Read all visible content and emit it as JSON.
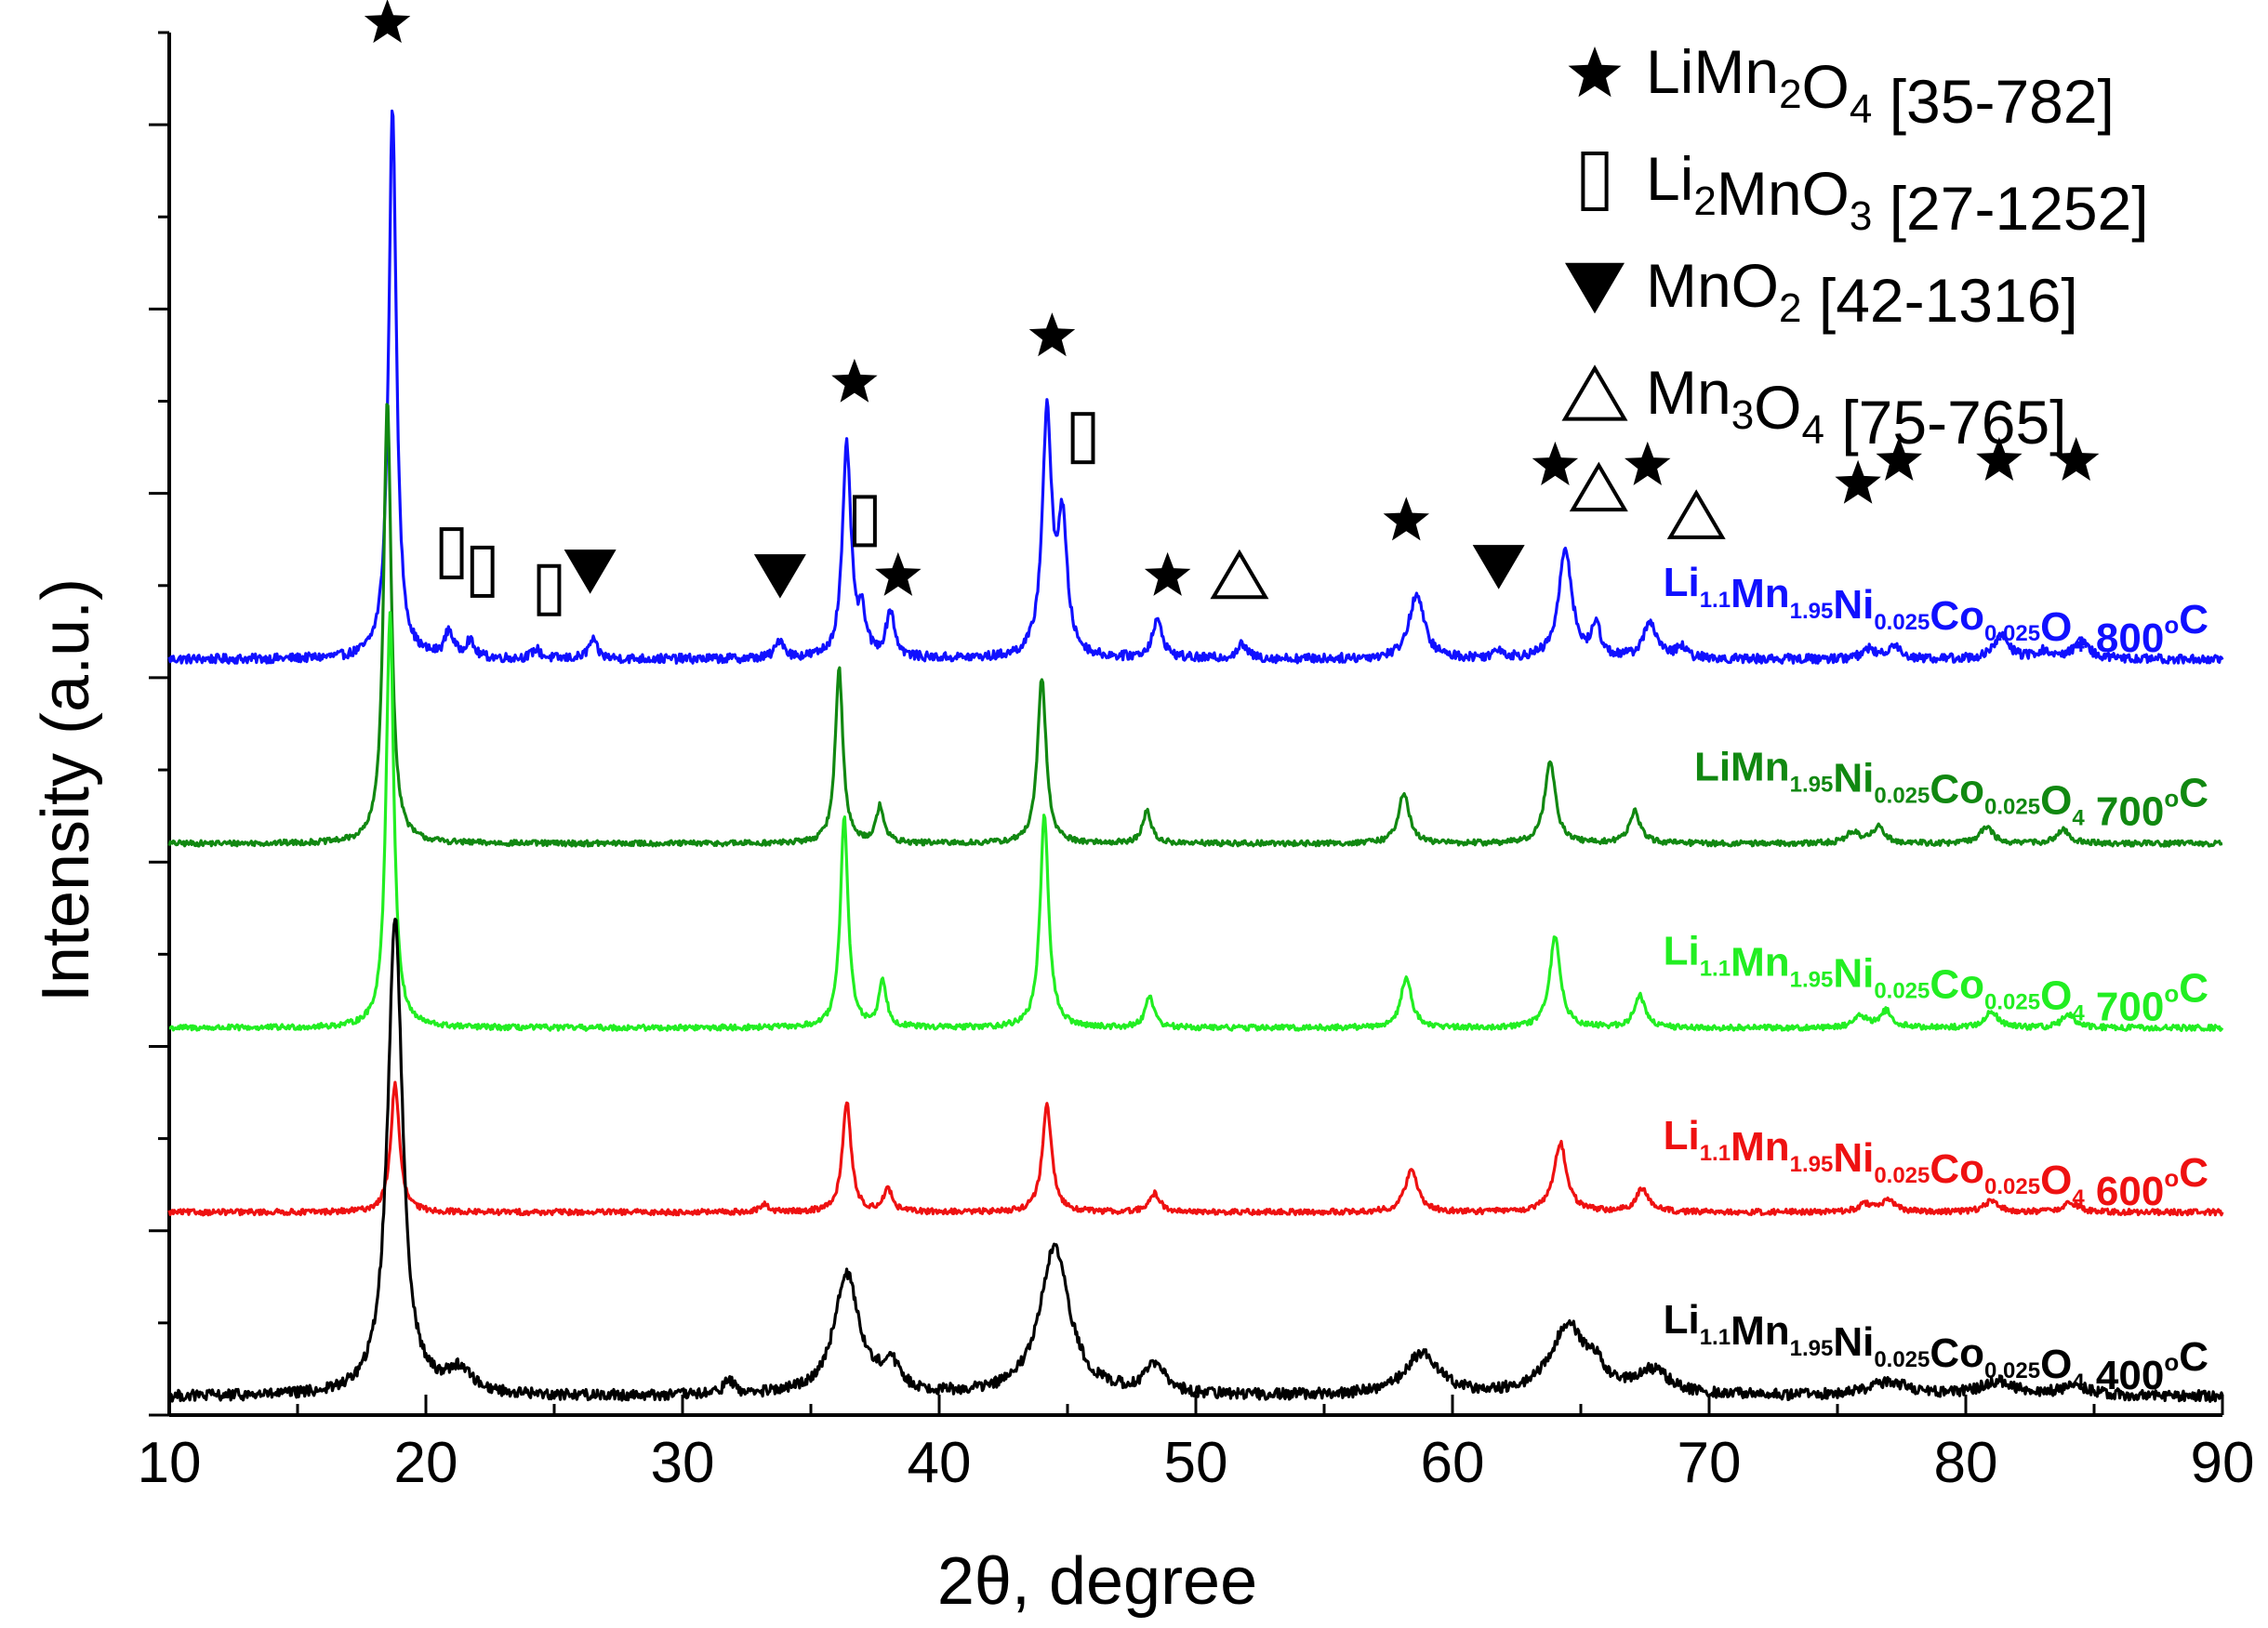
{
  "chart_data": {
    "type": "line",
    "xlabel": "2θ, degree",
    "ylabel": "Intensity (a.u.)",
    "xlim": [
      10,
      90
    ],
    "ylim": [
      0,
      15
    ],
    "x_ticks": [
      "10",
      "20",
      "30",
      "40",
      "50",
      "60",
      "70",
      "80",
      "90"
    ],
    "grid": false,
    "legend": {
      "placement": "top-right",
      "entries": [
        {
          "symbol": "filled-star",
          "glyph": "★",
          "name": "LiMn",
          "sub1": "2",
          "mid": "O",
          "sub2": "4",
          "ref": " [35-782]"
        },
        {
          "symbol": "open-box",
          "glyph": "▯",
          "name": "Li",
          "sub1": "2",
          "mid": "MnO",
          "sub2": "3",
          "ref": " [27-1252]"
        },
        {
          "symbol": "filled-down-triangle",
          "glyph": "▼",
          "name": "MnO",
          "sub1": "2",
          "mid": "",
          "sub2": "",
          "ref": " [42-1316]"
        },
        {
          "symbol": "open-triangle",
          "glyph": "△",
          "name": "Mn",
          "sub1": "3",
          "mid": "O",
          "sub2": "4",
          "ref": " [75-765]"
        }
      ]
    },
    "series": [
      {
        "name": "Li1.1Mn1.95Ni0.025Co0.025O4 800°C",
        "color": "#1010ff",
        "baseline": 8.2,
        "noise": 0.05,
        "label_parts": [
          [
            "Li",
            ""
          ],
          [
            "1.1",
            "sub"
          ],
          [
            "Mn",
            ""
          ],
          [
            "1.95",
            "sub"
          ],
          [
            "Ni",
            ""
          ],
          [
            "0.025",
            "sub"
          ],
          [
            "Co",
            ""
          ],
          [
            "0.025",
            "sub"
          ],
          [
            "O",
            ""
          ],
          [
            "4",
            "sub"
          ],
          [
            " 800",
            ""
          ],
          [
            "o",
            "sup"
          ],
          [
            "C",
            ""
          ]
        ],
        "peaks": [
          [
            18.7,
            6.0,
            0.18
          ],
          [
            20.9,
            0.28,
            0.2
          ],
          [
            21.7,
            0.18,
            0.2
          ],
          [
            24.3,
            0.1,
            0.2
          ],
          [
            26.5,
            0.2,
            0.2
          ],
          [
            33.8,
            0.2,
            0.2
          ],
          [
            36.4,
            2.3,
            0.2
          ],
          [
            37.0,
            0.4,
            0.18
          ],
          [
            38.1,
            0.5,
            0.2
          ],
          [
            44.2,
            2.6,
            0.22
          ],
          [
            44.8,
            1.4,
            0.22
          ],
          [
            48.5,
            0.4,
            0.25
          ],
          [
            51.8,
            0.15,
            0.25
          ],
          [
            58.6,
            0.7,
            0.35
          ],
          [
            61.8,
            0.1,
            0.2
          ],
          [
            64.4,
            1.2,
            0.3
          ],
          [
            65.6,
            0.35,
            0.2
          ],
          [
            67.7,
            0.4,
            0.3
          ],
          [
            68.9,
            0.12,
            0.25
          ],
          [
            76.2,
            0.1,
            0.3
          ],
          [
            77.2,
            0.15,
            0.3
          ],
          [
            81.4,
            0.25,
            0.35
          ],
          [
            83.0,
            0.08,
            0.3
          ],
          [
            84.5,
            0.2,
            0.35
          ]
        ]
      },
      {
        "name": "LiMn1.95Ni0.025Co0.025O4 700°C",
        "color": "#118811",
        "baseline": 6.2,
        "noise": 0.03,
        "label_parts": [
          [
            "LiMn",
            ""
          ],
          [
            "1.95",
            "sub"
          ],
          [
            "Ni",
            ""
          ],
          [
            "0.025",
            "sub"
          ],
          [
            "Co",
            ""
          ],
          [
            "0.025",
            "sub"
          ],
          [
            "O",
            ""
          ],
          [
            "4",
            "sub"
          ],
          [
            " 700",
            ""
          ],
          [
            "o",
            "sup"
          ],
          [
            "C",
            ""
          ]
        ],
        "peaks": [
          [
            18.5,
            4.8,
            0.18
          ],
          [
            36.1,
            1.9,
            0.18
          ],
          [
            37.7,
            0.4,
            0.18
          ],
          [
            44.0,
            1.8,
            0.2
          ],
          [
            48.1,
            0.35,
            0.2
          ],
          [
            58.1,
            0.55,
            0.25
          ],
          [
            63.8,
            0.9,
            0.25
          ],
          [
            67.1,
            0.35,
            0.25
          ],
          [
            75.6,
            0.12,
            0.3
          ],
          [
            76.6,
            0.18,
            0.3
          ],
          [
            80.8,
            0.18,
            0.3
          ],
          [
            83.8,
            0.15,
            0.3
          ]
        ]
      },
      {
        "name": "Li1.1Mn1.95Ni0.025Co0.025O4 700°C",
        "color": "#22ee22",
        "baseline": 4.2,
        "noise": 0.03,
        "label_parts": [
          [
            "Li",
            ""
          ],
          [
            "1.1",
            "sub"
          ],
          [
            "Mn",
            ""
          ],
          [
            "1.95",
            "sub"
          ],
          [
            "Ni",
            ""
          ],
          [
            "0.025",
            "sub"
          ],
          [
            "Co",
            ""
          ],
          [
            "0.025",
            "sub"
          ],
          [
            "O",
            ""
          ],
          [
            "4",
            "sub"
          ],
          [
            " 700",
            ""
          ],
          [
            "o",
            "sup"
          ],
          [
            "C",
            ""
          ]
        ],
        "peaks": [
          [
            18.6,
            4.5,
            0.18
          ],
          [
            36.3,
            2.3,
            0.18
          ],
          [
            37.8,
            0.5,
            0.18
          ],
          [
            44.1,
            2.3,
            0.2
          ],
          [
            48.2,
            0.35,
            0.2
          ],
          [
            58.2,
            0.55,
            0.25
          ],
          [
            64.0,
            1.0,
            0.25
          ],
          [
            67.3,
            0.35,
            0.25
          ],
          [
            75.9,
            0.12,
            0.3
          ],
          [
            76.9,
            0.18,
            0.3
          ],
          [
            81.0,
            0.18,
            0.3
          ],
          [
            84.0,
            0.15,
            0.3
          ]
        ]
      },
      {
        "name": "Li1.1Mn1.95Ni0.025Co0.025O4 600°C",
        "color": "#ee1111",
        "baseline": 2.2,
        "noise": 0.03,
        "label_parts": [
          [
            "Li",
            ""
          ],
          [
            "1.1",
            "sub"
          ],
          [
            "Mn",
            ""
          ],
          [
            "1.95",
            "sub"
          ],
          [
            "Ni",
            ""
          ],
          [
            "0.025",
            "sub"
          ],
          [
            "Co",
            ""
          ],
          [
            "0.025",
            "sub"
          ],
          [
            "O",
            ""
          ],
          [
            "4",
            "sub"
          ],
          [
            " 600",
            ""
          ],
          [
            "o",
            "sup"
          ],
          [
            "C",
            ""
          ]
        ],
        "peaks": [
          [
            18.8,
            1.4,
            0.2
          ],
          [
            33.2,
            0.08,
            0.2
          ],
          [
            36.4,
            1.2,
            0.2
          ],
          [
            38.0,
            0.25,
            0.2
          ],
          [
            44.2,
            1.15,
            0.22
          ],
          [
            48.4,
            0.2,
            0.25
          ],
          [
            58.4,
            0.45,
            0.3
          ],
          [
            64.2,
            0.75,
            0.3
          ],
          [
            67.4,
            0.25,
            0.3
          ],
          [
            76.1,
            0.08,
            0.35
          ],
          [
            77.0,
            0.12,
            0.35
          ],
          [
            81.0,
            0.12,
            0.35
          ],
          [
            84.1,
            0.1,
            0.35
          ]
        ]
      },
      {
        "name": "Li1.1Mn1.95Ni0.025Co0.025O4 400°C",
        "color": "#000000",
        "baseline": 0.2,
        "noise": 0.06,
        "label_parts": [
          [
            "Li",
            ""
          ],
          [
            "1.1",
            "sub"
          ],
          [
            "Mn",
            ""
          ],
          [
            "1.95",
            "sub"
          ],
          [
            "Ni",
            ""
          ],
          [
            "0.025",
            "sub"
          ],
          [
            "Co",
            ""
          ],
          [
            "0.025",
            "sub"
          ],
          [
            "O",
            ""
          ],
          [
            "4",
            "sub"
          ],
          [
            " 400",
            ""
          ],
          [
            "o",
            "sup"
          ],
          [
            "C",
            ""
          ]
        ],
        "peaks": [
          [
            18.8,
            5.2,
            0.35
          ],
          [
            21.3,
            0.25,
            0.6
          ],
          [
            31.8,
            0.15,
            0.25
          ],
          [
            36.4,
            1.3,
            0.6
          ],
          [
            38.1,
            0.3,
            0.4
          ],
          [
            44.5,
            1.6,
            0.7
          ],
          [
            48.4,
            0.3,
            0.5
          ],
          [
            58.8,
            0.45,
            0.8
          ],
          [
            64.5,
            0.75,
            0.8
          ],
          [
            65.6,
            0.2,
            0.4
          ],
          [
            67.8,
            0.25,
            0.8
          ],
          [
            77.0,
            0.15,
            1.0
          ],
          [
            81.2,
            0.15,
            0.8
          ],
          [
            84.3,
            0.1,
            0.8
          ]
        ]
      }
    ],
    "annotations": [
      {
        "glyph": "★",
        "symbol": "filled-star",
        "x": 18.5,
        "y": 15.1
      },
      {
        "glyph": "▯",
        "symbol": "open-box",
        "x": 21.0,
        "y": 9.35
      },
      {
        "glyph": "▯",
        "symbol": "open-box",
        "x": 22.2,
        "y": 9.15
      },
      {
        "glyph": "▯",
        "symbol": "open-box",
        "x": 24.8,
        "y": 8.95
      },
      {
        "glyph": "▼",
        "symbol": "filled-down-triangle",
        "x": 26.4,
        "y": 9.15
      },
      {
        "glyph": "▼",
        "symbol": "filled-down-triangle",
        "x": 33.8,
        "y": 9.1
      },
      {
        "glyph": "★",
        "symbol": "filled-star",
        "x": 36.7,
        "y": 11.2
      },
      {
        "glyph": "▯",
        "symbol": "open-box",
        "x": 37.1,
        "y": 9.7
      },
      {
        "glyph": "★",
        "symbol": "filled-star",
        "x": 38.4,
        "y": 9.1
      },
      {
        "glyph": "★",
        "symbol": "filled-star",
        "x": 44.4,
        "y": 11.7
      },
      {
        "glyph": "▯",
        "symbol": "open-box",
        "x": 45.6,
        "y": 10.6
      },
      {
        "glyph": "★",
        "symbol": "filled-star",
        "x": 48.9,
        "y": 9.1
      },
      {
        "glyph": "△",
        "symbol": "open-triangle",
        "x": 51.7,
        "y": 9.1
      },
      {
        "glyph": "★",
        "symbol": "filled-star",
        "x": 58.2,
        "y": 9.7
      },
      {
        "glyph": "▼",
        "symbol": "filled-down-triangle",
        "x": 61.8,
        "y": 9.2
      },
      {
        "glyph": "★",
        "symbol": "filled-star",
        "x": 64.0,
        "y": 10.3
      },
      {
        "glyph": "△",
        "symbol": "open-triangle",
        "x": 65.7,
        "y": 10.05
      },
      {
        "glyph": "★",
        "symbol": "filled-star",
        "x": 67.6,
        "y": 10.3
      },
      {
        "glyph": "△",
        "symbol": "open-triangle",
        "x": 69.5,
        "y": 9.75
      },
      {
        "glyph": "★",
        "symbol": "filled-star",
        "x": 75.8,
        "y": 10.1
      },
      {
        "glyph": "★",
        "symbol": "filled-star",
        "x": 77.4,
        "y": 10.35
      },
      {
        "glyph": "★",
        "symbol": "filled-star",
        "x": 81.3,
        "y": 10.35
      },
      {
        "glyph": "★",
        "symbol": "filled-star",
        "x": 84.3,
        "y": 10.35
      }
    ]
  }
}
